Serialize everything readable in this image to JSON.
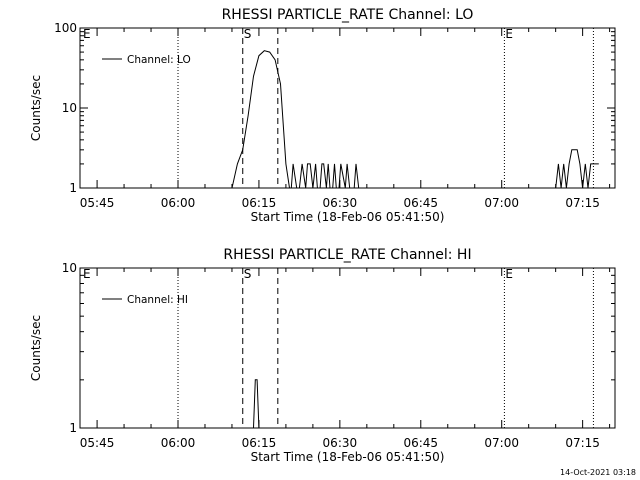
{
  "footer": {
    "timestamp": "14-Oct-2021 03:18"
  },
  "colors": {
    "background": "#ffffff",
    "foreground": "#000000"
  },
  "chart_data": [
    {
      "type": "line",
      "title": "RHESSI PARTICLE_RATE Channel: LO",
      "xlabel": "Start Time (18-Feb-06 05:41:50)",
      "ylabel": "Counts/sec",
      "y_scale": "log",
      "ylim": [
        1,
        100
      ],
      "xlim": [
        "05:41:50",
        "07:21:00"
      ],
      "y_tick_labels": [
        "1",
        "10",
        "100"
      ],
      "x_tick_labels": [
        "05:45",
        "06:00",
        "06:15",
        "06:30",
        "06:45",
        "07:00",
        "07:15"
      ],
      "legend": "top-left",
      "series": [
        {
          "name": "Channel: LO",
          "x": [
            "06:10:00",
            "06:11:00",
            "06:12:00",
            "06:13:00",
            "06:14:00",
            "06:15:00",
            "06:16:00",
            "06:17:00",
            "06:18:00",
            "06:19:00",
            "06:20:00",
            "06:20:40",
            "06:21:00",
            "06:21:20",
            "06:22:00",
            "06:22:30",
            "06:23:00",
            "06:23:40",
            "06:24:00",
            "06:24:30",
            "06:25:00",
            "06:25:30",
            "06:25:50",
            "06:26:20",
            "06:26:40",
            "06:27:00",
            "06:27:30",
            "06:27:50",
            "06:28:10",
            "06:28:40",
            "06:29:00",
            "06:29:20",
            "06:29:50",
            "06:30:10",
            "06:31:00",
            "06:31:20",
            "06:31:50",
            "06:32:10",
            "06:32:40",
            "06:33:00",
            "06:33:30",
            "06:34:30",
            "07:10:00",
            "07:10:30",
            "07:11:00",
            "07:11:30",
            "07:12:00",
            "07:12:30",
            "07:13:00",
            "07:13:30",
            "07:14:00",
            "07:14:30",
            "07:15:00",
            "07:15:30",
            "07:16:00",
            "07:16:30",
            "07:17:00",
            "07:17:30",
            "07:18:00"
          ],
          "values": [
            1,
            2,
            3,
            8,
            25,
            45,
            52,
            50,
            40,
            20,
            2,
            1,
            1,
            2,
            1,
            1,
            2,
            1,
            2,
            2,
            1,
            2,
            1,
            1,
            2,
            2,
            1,
            2,
            1,
            1,
            2,
            1,
            1,
            2,
            1,
            2,
            1,
            1,
            1,
            2,
            1,
            1,
            1,
            2,
            1,
            2,
            1,
            2,
            3,
            3,
            3,
            2,
            1,
            2,
            1,
            2,
            2,
            2,
            2
          ]
        }
      ],
      "annotations": [
        {
          "label": "E",
          "x": "05:41:50"
        },
        {
          "label": "S",
          "x": "06:12:00"
        },
        {
          "label": "",
          "x": "06:18:30"
        },
        {
          "label": "",
          "x": "06:00:00"
        },
        {
          "label": "E",
          "x": "07:00:30"
        },
        {
          "label": "",
          "x": "07:17:00"
        }
      ]
    },
    {
      "type": "line",
      "title": "RHESSI PARTICLE_RATE Channel: HI",
      "xlabel": "Start Time (18-Feb-06 05:41:50)",
      "ylabel": "Counts/sec",
      "y_scale": "log",
      "ylim": [
        1,
        10
      ],
      "xlim": [
        "05:41:50",
        "07:21:00"
      ],
      "y_tick_labels": [
        "1",
        "10"
      ],
      "x_tick_labels": [
        "05:45",
        "06:00",
        "06:15",
        "06:30",
        "06:45",
        "07:00",
        "07:15"
      ],
      "legend": "top-left",
      "series": [
        {
          "name": "Channel: HI",
          "x": [
            "06:14:00",
            "06:14:20",
            "06:14:40",
            "06:15:00",
            "06:15:20"
          ],
          "values": [
            1,
            2,
            2,
            1,
            1
          ]
        }
      ],
      "annotations": [
        {
          "label": "E",
          "x": "05:41:50"
        },
        {
          "label": "S",
          "x": "06:12:00"
        },
        {
          "label": "",
          "x": "06:18:30"
        },
        {
          "label": "",
          "x": "06:00:00"
        },
        {
          "label": "E",
          "x": "07:00:30"
        },
        {
          "label": "",
          "x": "07:17:00"
        }
      ]
    }
  ]
}
